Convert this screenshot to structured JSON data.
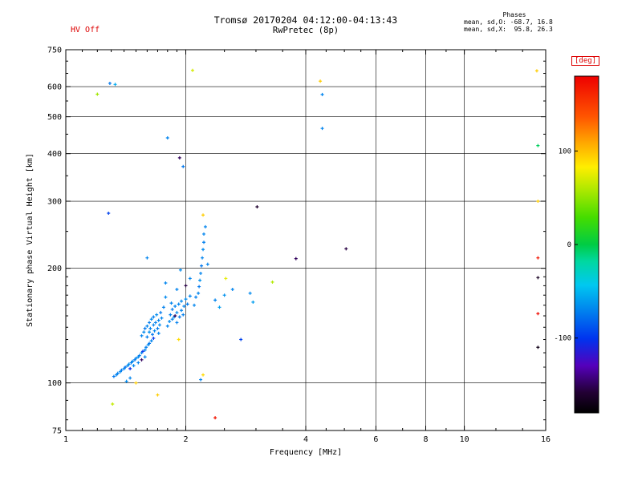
{
  "header": {
    "hv_status": "HV Off",
    "title": "Tromsø 20170204 04:12:00-04:13:43",
    "subtitle": "RwPretec (8p)",
    "stats": {
      "heading": "Phases",
      "line_o": "mean, sd,O: -68.7, 16.8",
      "line_x": "mean, sd,X:  95.8, 26.3"
    }
  },
  "colors": {
    "accent_red": "#dd0000",
    "frame": "#000000",
    "background": "#ffffff"
  },
  "chart_data": {
    "type": "scatter",
    "title": "Tromsø 20170204 04:12:00-04:13:43",
    "subtitle": "RwPretec (8p)",
    "xlabel": "Frequency [MHz]",
    "ylabel": "Stationary phase Virtual Height [km]",
    "x_scale": "log",
    "y_scale": "log",
    "xlim": [
      1,
      16
    ],
    "ylim": [
      75,
      750
    ],
    "x_ticks": [
      1,
      2,
      4,
      6,
      8,
      10,
      16
    ],
    "y_ticks": [
      75,
      100,
      200,
      300,
      400,
      500,
      600,
      750
    ],
    "x_gridlines": [
      2,
      4,
      6,
      8,
      10
    ],
    "y_gridlines": [
      100,
      200,
      300,
      400,
      500,
      600
    ],
    "x_minor_ticks": [
      1.1,
      1.2,
      1.3,
      1.4,
      1.5,
      1.6,
      1.7,
      1.8,
      1.9,
      2.5,
      3,
      3.5,
      4.5,
      5,
      5.5,
      7,
      9,
      12,
      14
    ],
    "y_minor_ticks": [
      80,
      90,
      110,
      120,
      130,
      140,
      150,
      160,
      170,
      180,
      190,
      250,
      350,
      450,
      550,
      650,
      700
    ],
    "grid": true,
    "marker": "plus",
    "colorbar": {
      "label": "[deg]",
      "range": [
        -180,
        180
      ],
      "ticks": [
        100,
        0,
        -100
      ],
      "stops": [
        {
          "t": 0.0,
          "c": "#000000"
        },
        {
          "t": 0.06,
          "c": "#220033"
        },
        {
          "t": 0.14,
          "c": "#5500bb"
        },
        {
          "t": 0.22,
          "c": "#0033ee"
        },
        {
          "t": 0.31,
          "c": "#0088ee"
        },
        {
          "t": 0.38,
          "c": "#00c8f0"
        },
        {
          "t": 0.45,
          "c": "#00d8a0"
        },
        {
          "t": 0.5,
          "c": "#00cc44"
        },
        {
          "t": 0.58,
          "c": "#44dd00"
        },
        {
          "t": 0.66,
          "c": "#aae800"
        },
        {
          "t": 0.73,
          "c": "#ffee00"
        },
        {
          "t": 0.8,
          "c": "#ffaa00"
        },
        {
          "t": 0.88,
          "c": "#ff5500"
        },
        {
          "t": 1.0,
          "c": "#ee0000"
        }
      ]
    },
    "points": [
      [
        1.29,
        612,
        -75
      ],
      [
        1.33,
        608,
        -55
      ],
      [
        1.2,
        573,
        55
      ],
      [
        2.08,
        662,
        70
      ],
      [
        4.35,
        620,
        95
      ],
      [
        4.4,
        572,
        -70
      ],
      [
        4.4,
        466,
        -70
      ],
      [
        15.2,
        660,
        95
      ],
      [
        15.3,
        420,
        -5
      ],
      [
        15.3,
        300,
        95
      ],
      [
        15.3,
        213,
        170
      ],
      [
        15.3,
        189,
        -165
      ],
      [
        15.3,
        152,
        175
      ],
      [
        15.3,
        124,
        -170
      ],
      [
        3.02,
        290,
        -160
      ],
      [
        5.05,
        225,
        -155
      ],
      [
        3.78,
        212,
        -150
      ],
      [
        1.28,
        279,
        -95
      ],
      [
        1.6,
        213,
        -70
      ],
      [
        1.8,
        440,
        -70
      ],
      [
        1.93,
        390,
        -150
      ],
      [
        1.97,
        370,
        -75
      ],
      [
        2.52,
        188,
        75
      ],
      [
        3.3,
        184,
        60
      ],
      [
        1.31,
        88,
        65
      ],
      [
        1.7,
        93,
        95
      ],
      [
        2.37,
        81,
        170
      ],
      [
        1.5,
        100,
        95
      ],
      [
        2.75,
        130,
        -95
      ],
      [
        2.27,
        205,
        -70
      ],
      [
        2.24,
        257,
        -70
      ],
      [
        2.21,
        276,
        95
      ],
      [
        2.22,
        246,
        -70
      ],
      [
        2.21,
        105,
        90
      ],
      [
        2.15,
        172,
        -70
      ],
      [
        2.16,
        179,
        -75
      ],
      [
        2.17,
        186,
        -65
      ],
      [
        2.18,
        194,
        -70
      ],
      [
        2.19,
        203,
        -75
      ],
      [
        2.2,
        213,
        -70
      ],
      [
        2.21,
        224,
        -68
      ],
      [
        2.22,
        234,
        -72
      ],
      [
        2.37,
        165,
        -70
      ],
      [
        2.43,
        158,
        -60
      ],
      [
        2.5,
        170,
        -65
      ],
      [
        2.62,
        176,
        -70
      ],
      [
        2.9,
        172,
        -68
      ],
      [
        2.95,
        163,
        -60
      ],
      [
        1.32,
        104,
        -75
      ],
      [
        1.34,
        105,
        -70
      ],
      [
        1.35,
        106,
        -72
      ],
      [
        1.37,
        107,
        -68
      ],
      [
        1.38,
        108,
        -74
      ],
      [
        1.4,
        109,
        -70
      ],
      [
        1.41,
        110,
        -76
      ],
      [
        1.43,
        111,
        -70
      ],
      [
        1.44,
        112,
        -66
      ],
      [
        1.46,
        113,
        -72
      ],
      [
        1.47,
        114,
        -70
      ],
      [
        1.49,
        115,
        -75
      ],
      [
        1.5,
        116,
        -70
      ],
      [
        1.52,
        117,
        -68
      ],
      [
        1.53,
        118,
        -73
      ],
      [
        1.55,
        120,
        -70
      ],
      [
        1.56,
        121,
        -100
      ],
      [
        1.58,
        122,
        -70
      ],
      [
        1.59,
        124,
        -72
      ],
      [
        1.61,
        126,
        -68
      ],
      [
        1.62,
        127,
        -74
      ],
      [
        1.64,
        129,
        -70
      ],
      [
        1.45,
        109,
        -105
      ],
      [
        1.48,
        111,
        -70
      ],
      [
        1.52,
        113,
        -72
      ],
      [
        1.55,
        115,
        -150
      ],
      [
        1.58,
        117,
        -70
      ],
      [
        1.45,
        103,
        -70
      ],
      [
        1.42,
        101,
        -68
      ],
      [
        2.18,
        102,
        -70
      ],
      [
        1.55,
        133,
        -70
      ],
      [
        1.57,
        136,
        -68
      ],
      [
        1.58,
        139,
        -75
      ],
      [
        1.6,
        132,
        -72
      ],
      [
        1.6,
        141,
        -70
      ],
      [
        1.62,
        136,
        -66
      ],
      [
        1.62,
        144,
        -73
      ],
      [
        1.63,
        139,
        -70
      ],
      [
        1.64,
        147,
        -68
      ],
      [
        1.65,
        134,
        -75
      ],
      [
        1.66,
        142,
        -70
      ],
      [
        1.66,
        149,
        -72
      ],
      [
        1.67,
        137,
        -69
      ],
      [
        1.68,
        144,
        -71
      ],
      [
        1.69,
        151,
        -67
      ],
      [
        1.7,
        139,
        -73
      ],
      [
        1.71,
        146,
        -70
      ],
      [
        1.72,
        142,
        -68
      ],
      [
        1.73,
        153,
        -74
      ],
      [
        1.74,
        148,
        -70
      ],
      [
        1.66,
        131,
        -100
      ],
      [
        1.71,
        135,
        -70
      ],
      [
        1.8,
        141,
        -70
      ],
      [
        1.82,
        145,
        -68
      ],
      [
        1.83,
        151,
        -72
      ],
      [
        1.85,
        147,
        -70
      ],
      [
        1.85,
        156,
        -74
      ],
      [
        1.87,
        149,
        -66
      ],
      [
        1.88,
        159,
        -70
      ],
      [
        1.9,
        144,
        -72
      ],
      [
        1.9,
        153,
        -68
      ],
      [
        1.92,
        161,
        -70
      ],
      [
        1.93,
        149,
        -75
      ],
      [
        1.95,
        155,
        -70
      ],
      [
        1.95,
        164,
        -68
      ],
      [
        1.97,
        151,
        -72
      ],
      [
        1.98,
        159,
        -70
      ],
      [
        2.0,
        166,
        -67
      ],
      [
        2.02,
        161,
        -73
      ],
      [
        2.05,
        169,
        -70
      ],
      [
        1.88,
        150,
        -150
      ],
      [
        1.84,
        162,
        -70
      ],
      [
        1.78,
        168,
        -68
      ],
      [
        1.76,
        158,
        -71
      ],
      [
        1.92,
        130,
        90
      ],
      [
        1.9,
        176,
        -70
      ],
      [
        2.0,
        180,
        -155
      ],
      [
        2.05,
        188,
        -70
      ],
      [
        1.94,
        198,
        -68
      ],
      [
        2.1,
        160,
        -70
      ],
      [
        2.12,
        168,
        -72
      ],
      [
        1.78,
        183,
        -70
      ]
    ]
  }
}
